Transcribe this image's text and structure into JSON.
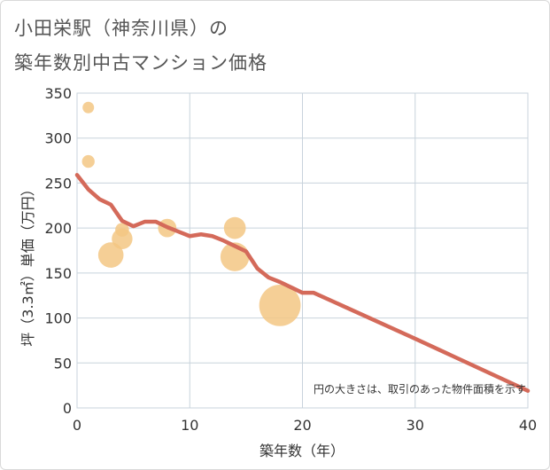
{
  "title": {
    "line1": "小田栄駅（神奈川県）の",
    "line2": "築年数別中古マンション価格"
  },
  "chart_data": {
    "type": "scatter",
    "xlabel": "築年数（年）",
    "ylabel": "坪（3.3㎡）単価（万円）",
    "xlim": [
      0,
      40
    ],
    "ylim": [
      0,
      350
    ],
    "xticks": [
      0,
      10,
      20,
      30,
      40
    ],
    "yticks": [
      0,
      50,
      100,
      150,
      200,
      250,
      300,
      350
    ],
    "grid": true,
    "note": "円の大きさは、取引のあった物件面積を示す",
    "colors": {
      "bubble": "#f3c784",
      "trend": "#d46a5a",
      "grid": "#c8d3dc",
      "axis_text": "#333333"
    },
    "scatter": [
      {
        "x": 1,
        "y": 334,
        "size": 1
      },
      {
        "x": 1,
        "y": 274,
        "size": 1.1
      },
      {
        "x": 3,
        "y": 170,
        "size": 2.2
      },
      {
        "x": 4,
        "y": 198,
        "size": 1.2
      },
      {
        "x": 4,
        "y": 188,
        "size": 1.8
      },
      {
        "x": 8,
        "y": 200,
        "size": 1.6
      },
      {
        "x": 14,
        "y": 200,
        "size": 1.9
      },
      {
        "x": 14,
        "y": 168,
        "size": 2.5
      },
      {
        "x": 18,
        "y": 114,
        "size": 3.6
      }
    ],
    "trend": {
      "x": [
        0,
        1,
        2,
        3,
        4,
        5,
        6,
        7,
        8,
        9,
        10,
        11,
        12,
        13,
        14,
        15,
        16,
        17,
        18,
        19,
        20,
        21,
        30,
        40
      ],
      "y": [
        259,
        243,
        232,
        226,
        208,
        202,
        207,
        207,
        201,
        196,
        191,
        193,
        191,
        186,
        180,
        174,
        155,
        145,
        140,
        134,
        128,
        128,
        77,
        19
      ]
    }
  }
}
